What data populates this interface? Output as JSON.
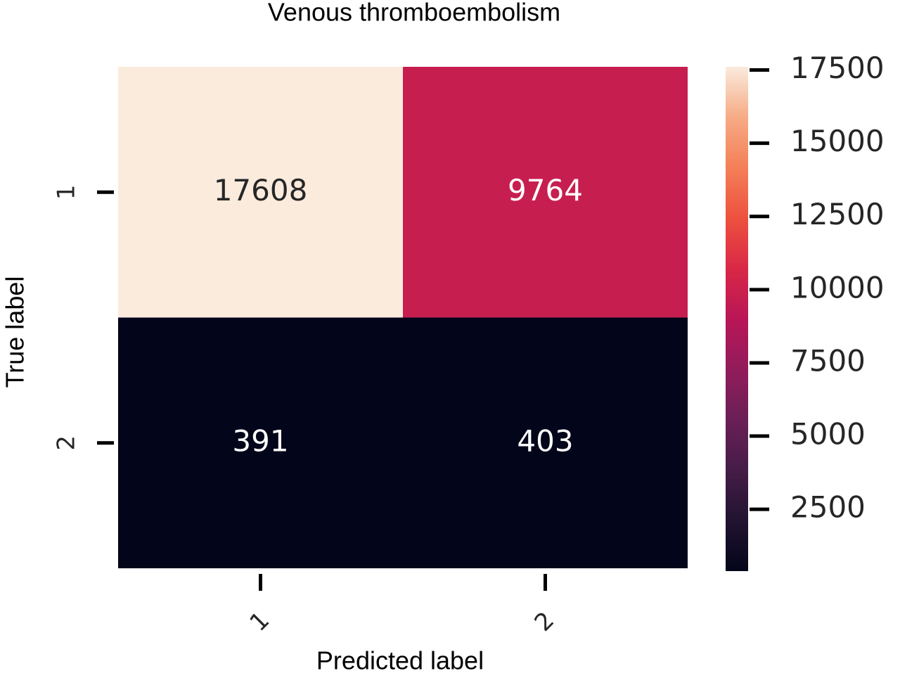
{
  "chart_data": {
    "type": "heatmap",
    "title": "Venous thromboembolism",
    "xlabel": "Predicted label",
    "ylabel": "True label",
    "x_categories": [
      "1",
      "2"
    ],
    "y_categories": [
      "1",
      "2"
    ],
    "values": [
      [
        17608,
        9764
      ],
      [
        391,
        403
      ]
    ],
    "colormap": "rocket",
    "clim": [
      391,
      17608
    ],
    "cticks": [
      2500,
      5000,
      7500,
      10000,
      12500,
      15000,
      17500
    ]
  }
}
